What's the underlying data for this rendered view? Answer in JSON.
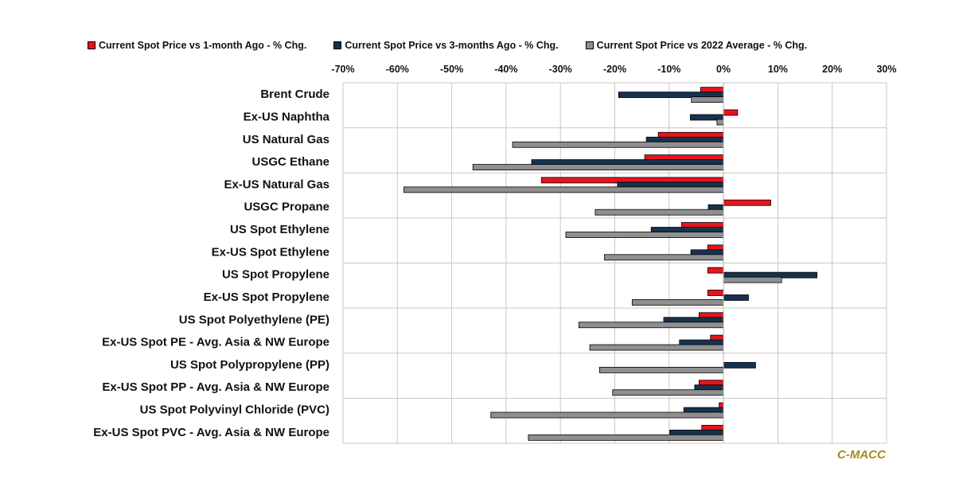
{
  "chart_data": {
    "type": "bar",
    "orientation": "horizontal",
    "categories": [
      "Brent Crude",
      "Ex-US Naphtha",
      "US Natural Gas",
      "USGC Ethane",
      "Ex-US Natural Gas",
      "USGC Propane",
      "US Spot Ethylene",
      "Ex-US Spot Ethylene",
      "US Spot Propylene",
      "Ex-US Spot Propylene",
      "US Spot Polyethylene (PE)",
      "Ex-US Spot PE - Avg. Asia & NW Europe",
      "US Spot Polypropylene (PP)",
      "Ex-US Spot PP - Avg. Asia & NW Europe",
      "US Spot Polyvinyl Chloride (PVC)",
      "Ex-US Spot PVC - Avg. Asia & NW Europe"
    ],
    "series": [
      {
        "name": "Current Spot Price vs 1-month Ago - % Chg.",
        "color": "#e8141b",
        "values": [
          -4.2,
          2.6,
          -12,
          -14.5,
          -33.5,
          8.7,
          -7.7,
          -2.9,
          -2.9,
          -2.9,
          -4.5,
          -2.4,
          0,
          -4.5,
          -0.8,
          -4
        ]
      },
      {
        "name": "Current Spot Price vs 3-months Ago - % Chg.",
        "color": "#17324f",
        "values": [
          -19.3,
          -6.1,
          -14.2,
          -35.3,
          -19.5,
          -2.8,
          -13.3,
          -6,
          17.2,
          4.6,
          -11,
          -8.1,
          5.9,
          -5.3,
          -7.3,
          -9.9
        ]
      },
      {
        "name": "Current Spot Price vs 2022 Average - % Chg.",
        "color": "#8f8f8f",
        "values": [
          -5.9,
          -1.2,
          -38.8,
          -46.1,
          -58.8,
          -23.6,
          -29,
          -21.9,
          10.7,
          -16.8,
          -26.6,
          -24.6,
          -22.8,
          -20.4,
          -42.8,
          -35.9
        ]
      }
    ],
    "xlim": [
      -70,
      30
    ],
    "xticks": [
      -70,
      -60,
      -50,
      -40,
      -30,
      -20,
      -10,
      0,
      10,
      20,
      30
    ],
    "tick_labels": [
      "-70%",
      "-60%",
      "-50%",
      "-40%",
      "-30%",
      "-20%",
      "-10%",
      "0%",
      "10%",
      "20%",
      "30%"
    ],
    "xaxis_position": "top",
    "grid": true,
    "legend_position": "top",
    "title": "",
    "xlabel": "",
    "ylabel": ""
  },
  "watermark": "C-MACC"
}
